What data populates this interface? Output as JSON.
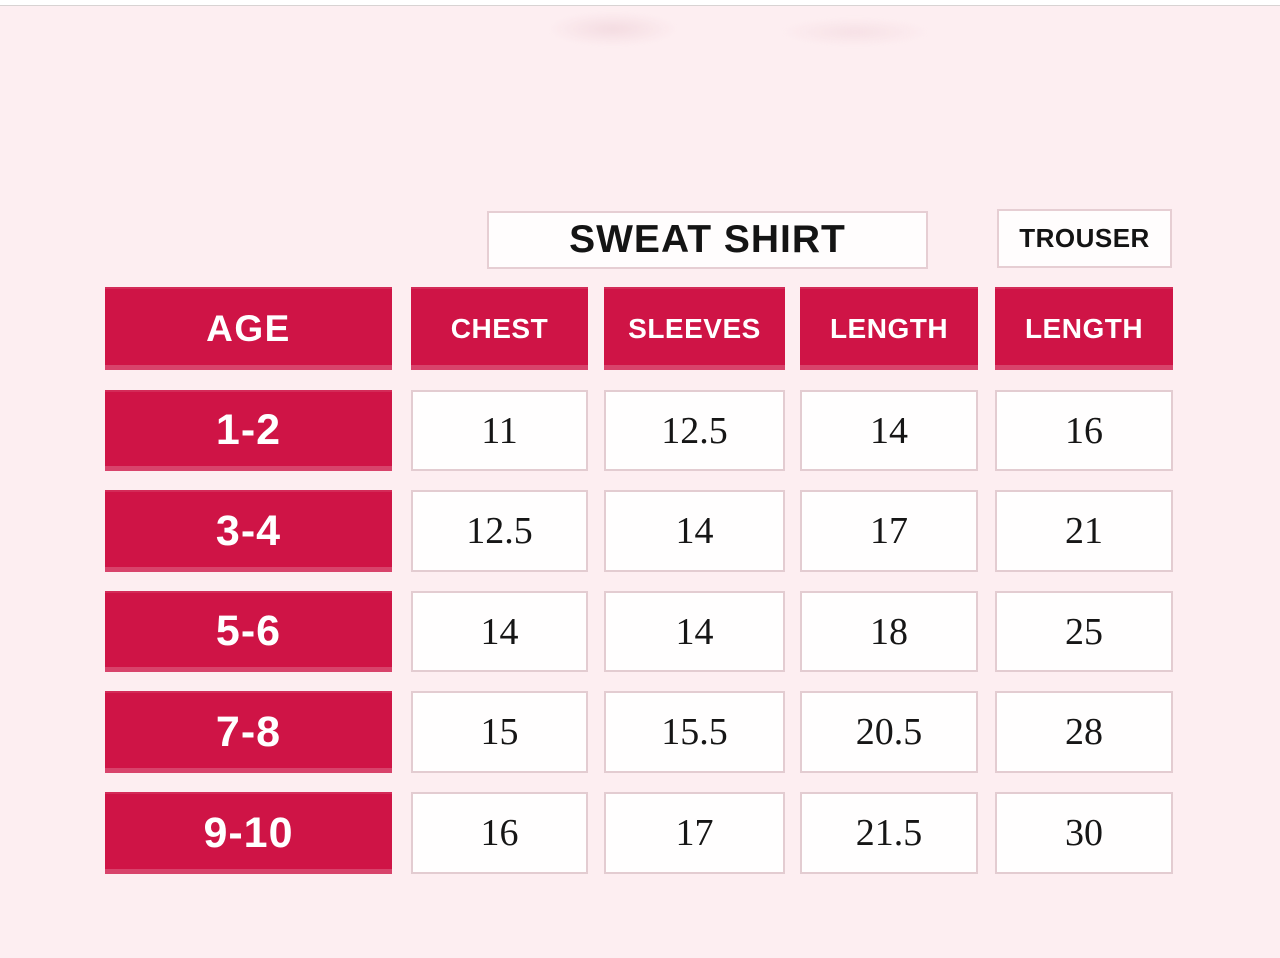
{
  "colors": {
    "background": "#fdeef1",
    "accent_red": "#cf1446",
    "cell_border": "#e3ccd1",
    "header_text": "#ffffff",
    "number_text": "#161616",
    "title_text": "#141414"
  },
  "chart_data": {
    "type": "table",
    "column_groups": [
      {
        "label": "SWEAT SHIRT",
        "covers": [
          "CHEST",
          "SLEEVES",
          "LENGTH"
        ]
      },
      {
        "label": "TROUSER",
        "covers": [
          "LENGTH"
        ]
      }
    ],
    "columns": [
      "AGE",
      "CHEST",
      "SLEEVES",
      "LENGTH",
      "LENGTH"
    ],
    "rows": [
      {
        "age": "1-2",
        "values": [
          "11",
          "12.5",
          "14",
          "16"
        ]
      },
      {
        "age": "3-4",
        "values": [
          "12.5",
          "14",
          "17",
          "21"
        ]
      },
      {
        "age": "5-6",
        "values": [
          "14",
          "14",
          "18",
          "25"
        ]
      },
      {
        "age": "7-8",
        "values": [
          "15",
          "15.5",
          "20.5",
          "28"
        ]
      },
      {
        "age": "9-10",
        "values": [
          "16",
          "17",
          "21.5",
          "30"
        ]
      }
    ]
  }
}
